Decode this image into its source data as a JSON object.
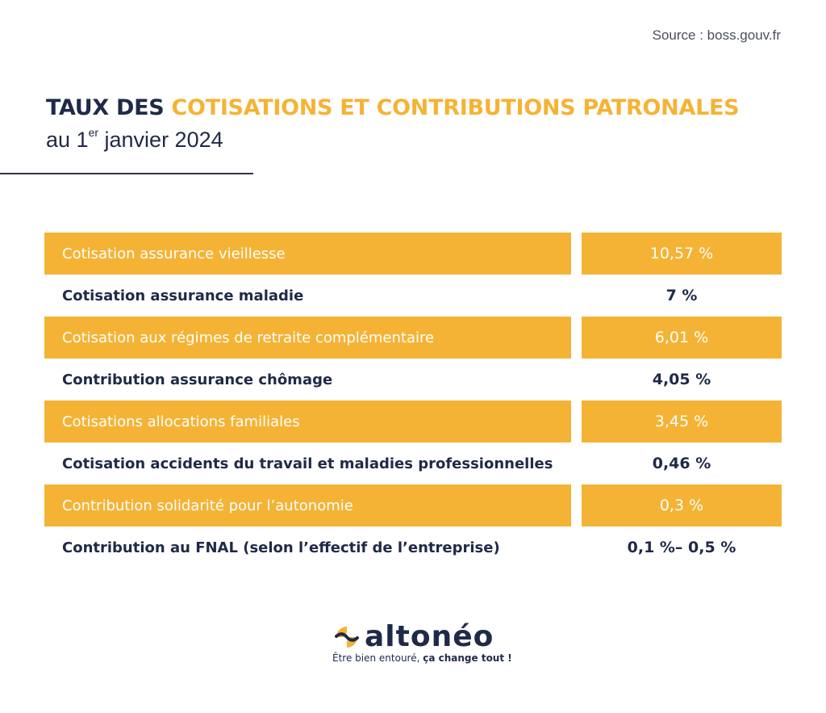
{
  "source": "Source : boss.gouv.fr",
  "title": {
    "part1": "TAUX DES ",
    "part2": "COTISATIONS ET CONTRIBUTIONS PATRONALES",
    "subtitle_prefix": "au 1",
    "subtitle_sup": "er",
    "subtitle_suffix": " janvier 2024"
  },
  "rows": [
    {
      "label": "Cotisation assurance vieillesse",
      "value": "10,57 %",
      "highlighted": true
    },
    {
      "label": "Cotisation assurance maladie",
      "value": "7 %",
      "highlighted": false
    },
    {
      "label": "Cotisation aux régimes de retraite complémentaire",
      "value": "6,01 %",
      "highlighted": true
    },
    {
      "label": "Contribution assurance chômage",
      "value": "4,05 %",
      "highlighted": false
    },
    {
      "label": "Cotisations allocations familiales",
      "value": "3,45 %",
      "highlighted": true
    },
    {
      "label": "Cotisation accidents du travail et maladies professionnelles",
      "value": "0,46 %",
      "highlighted": false
    },
    {
      "label": "Contribution solidarité pour l’autonomie",
      "value": "0,3 %",
      "highlighted": true
    },
    {
      "label": "Contribution au FNAL (selon l’effectif de l’entreprise)",
      "value": "0,1 %– 0,5 %",
      "highlighted": false
    }
  ],
  "logo": {
    "name": "altonéo",
    "tagline_regular": "Être bien entouré, ",
    "tagline_bold": "ça change tout !"
  },
  "colors": {
    "accent": "#f5b335",
    "navy": "#1f2a48"
  }
}
